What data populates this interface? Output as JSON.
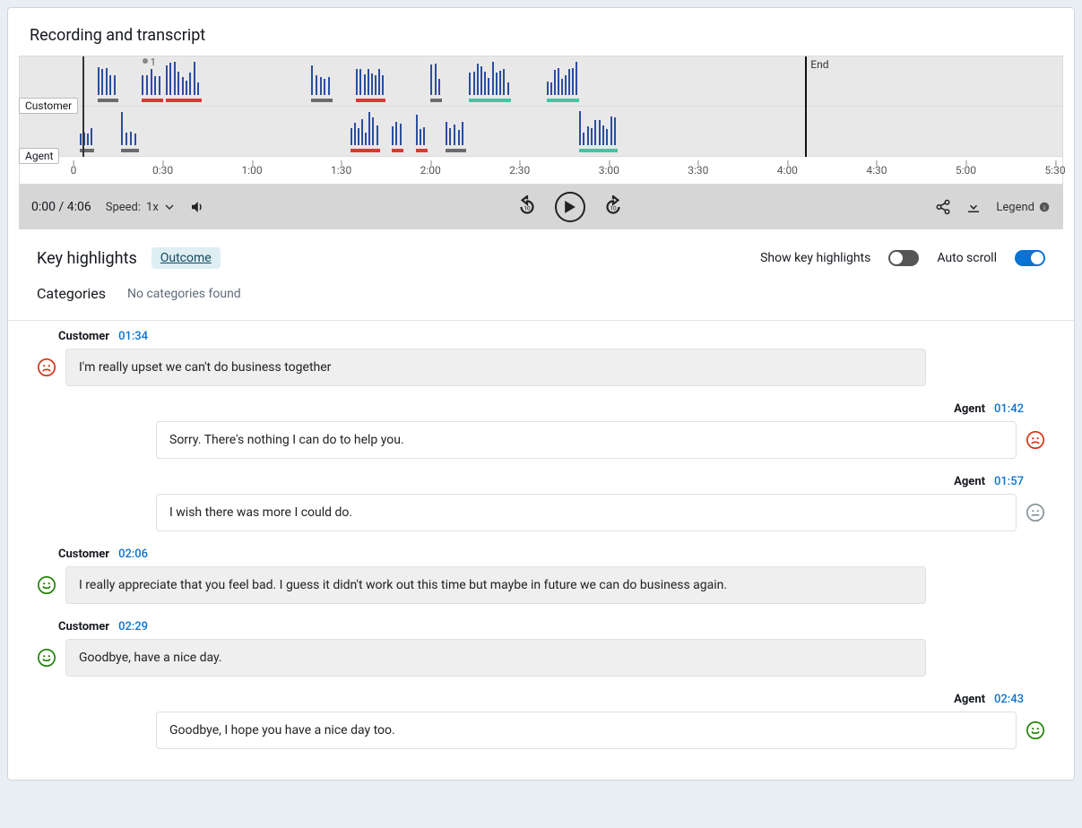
{
  "title": "Recording and transcript",
  "duration_sec": 246,
  "duration_label": "4:06",
  "axis_max_sec": 330,
  "axis_ticks": [
    {
      "sec": 0,
      "label": "0"
    },
    {
      "sec": 30,
      "label": "0:30"
    },
    {
      "sec": 60,
      "label": "1:00"
    },
    {
      "sec": 90,
      "label": "1:30"
    },
    {
      "sec": 120,
      "label": "2:00"
    },
    {
      "sec": 150,
      "label": "2:30"
    },
    {
      "sec": 180,
      "label": "3:00"
    },
    {
      "sec": 210,
      "label": "3:30"
    },
    {
      "sec": 240,
      "label": "4:00"
    },
    {
      "sec": 270,
      "label": "4:30"
    },
    {
      "sec": 300,
      "label": "5:00"
    },
    {
      "sec": 330,
      "label": "5:30"
    }
  ],
  "end_label": "End",
  "tracks": {
    "customer": {
      "label": "Customer",
      "segments": [
        {
          "start": 8,
          "end": 15,
          "sentiment": "neutral"
        },
        {
          "start": 23,
          "end": 30,
          "sentiment": "negative"
        },
        {
          "start": 31,
          "end": 43,
          "sentiment": "negative"
        },
        {
          "start": 80,
          "end": 87,
          "sentiment": "neutral"
        },
        {
          "start": 95,
          "end": 105,
          "sentiment": "negative"
        },
        {
          "start": 120,
          "end": 124,
          "sentiment": "neutral"
        },
        {
          "start": 133,
          "end": 147,
          "sentiment": "positive"
        },
        {
          "start": 159,
          "end": 170,
          "sentiment": "positive"
        }
      ]
    },
    "agent": {
      "label": "Agent",
      "segments": [
        {
          "start": 2,
          "end": 7,
          "sentiment": "neutral"
        },
        {
          "start": 16,
          "end": 22,
          "sentiment": "neutral"
        },
        {
          "start": 93,
          "end": 103,
          "sentiment": "negative"
        },
        {
          "start": 107,
          "end": 111,
          "sentiment": "negative"
        },
        {
          "start": 115,
          "end": 119,
          "sentiment": "negative"
        },
        {
          "start": 125,
          "end": 132,
          "sentiment": "neutral"
        },
        {
          "start": 170,
          "end": 183,
          "sentiment": "positive"
        }
      ]
    }
  },
  "flag": {
    "sec": 24,
    "label": "1"
  },
  "colors": {
    "bar": "#2b4ea0",
    "neutral": "#6b6b6b",
    "negative": "#e03535",
    "positive": "#3fc7a3",
    "track_bg": "#e8e8e8"
  },
  "player": {
    "position_label": "0:00",
    "speed_label": "Speed:",
    "speed_value": "1x",
    "legend_label": "Legend"
  },
  "highlights": {
    "title": "Key highlights",
    "badge": "Outcome",
    "show_label": "Show key highlights",
    "show_on": false,
    "autoscroll_label": "Auto scroll",
    "autoscroll_on": true
  },
  "categories": {
    "title": "Categories",
    "empty": "No categories found"
  },
  "transcript": [
    {
      "who": "Customer",
      "ts": "01:34",
      "text": "I'm really upset we can't do business together",
      "sentiment": "negative"
    },
    {
      "who": "Agent",
      "ts": "01:42",
      "text": "Sorry. There's nothing I can do to help you.",
      "sentiment": "negative"
    },
    {
      "who": "Agent",
      "ts": "01:57",
      "text": "I wish there was more I could do.",
      "sentiment": "neutral"
    },
    {
      "who": "Customer",
      "ts": "02:06",
      "text": "I really appreciate that you feel bad. I guess it didn't work out this time but maybe in future we can do business again.",
      "sentiment": "positive"
    },
    {
      "who": "Customer",
      "ts": "02:29",
      "text": "Goodbye, have a nice day.",
      "sentiment": "positive"
    },
    {
      "who": "Agent",
      "ts": "02:43",
      "text": "Goodbye, I hope you have a nice day too.",
      "sentiment": "positive"
    }
  ]
}
